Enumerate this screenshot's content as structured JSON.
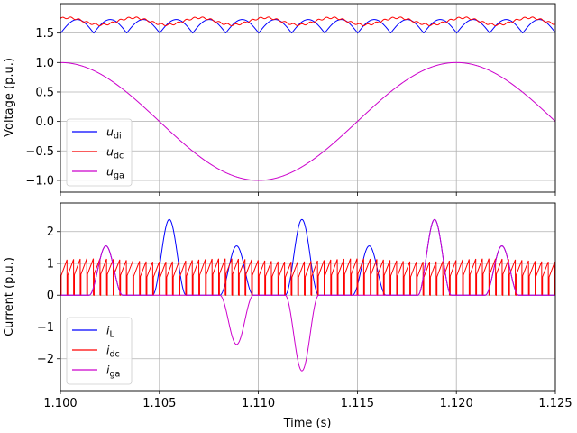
{
  "chart_data": [
    {
      "type": "line",
      "ylabel": "Voltage (p.u.)",
      "xlim": [
        1.1,
        1.125
      ],
      "ylim": [
        -1.2,
        2.0
      ],
      "yticks": [
        "1.5",
        "1.0",
        "0.5",
        "0.0",
        "−0.5",
        "−1.0"
      ],
      "ytick_values": [
        1.5,
        1.0,
        0.5,
        0.0,
        -0.5,
        -1.0
      ],
      "grid": true,
      "legend": "lower-left",
      "series": [
        {
          "name_base": "u",
          "name_sub": "di",
          "color": "#0000ff",
          "kind": "rectified_ripple",
          "values_desc": "ripple between about 1.5 and 1.73, period about 0.00167 s"
        },
        {
          "name_base": "u",
          "name_sub": "dc",
          "color": "#ff0000",
          "kind": "dc_ripple",
          "values_desc": "about 1.62 to 1.78, period about 0.0033 s"
        },
        {
          "name_base": "u",
          "name_sub": "ga",
          "color": "#cc00cc",
          "kind": "cosine",
          "values_desc": "cosine, 50 Hz, peak 1.0 at t=1.100 and 1.120, minimum -1.0 at t=1.110"
        }
      ]
    },
    {
      "type": "line",
      "xlabel": "Time (s)",
      "ylabel": "Current (p.u.)",
      "xlim": [
        1.1,
        1.125
      ],
      "ylim": [
        -3.0,
        2.9
      ],
      "xticks": [
        "1.100",
        "1.105",
        "1.110",
        "1.115",
        "1.120",
        "1.125"
      ],
      "xtick_values": [
        1.1,
        1.105,
        1.11,
        1.115,
        1.12,
        1.125
      ],
      "yticks": [
        "2",
        "1",
        "0",
        "−1",
        "−2"
      ],
      "ytick_values": [
        2,
        1,
        0,
        -1,
        -2
      ],
      "grid": true,
      "legend": "lower-left",
      "series": [
        {
          "name_base": "i",
          "name_sub": "L",
          "color": "#0000ff",
          "kind": "pulses",
          "peaks": [
            [
              1.1023,
              1.55
            ],
            [
              1.1055,
              2.38
            ],
            [
              1.1089,
              1.55
            ],
            [
              1.1122,
              2.38
            ],
            [
              1.1156,
              1.55
            ],
            [
              1.1189,
              2.38
            ],
            [
              1.1223,
              1.55
            ]
          ]
        },
        {
          "name_base": "i",
          "name_sub": "dc",
          "color": "#ff0000",
          "kind": "pwm_sawtooth",
          "values_desc": "switching between 0 and about 1.1"
        },
        {
          "name_base": "i",
          "name_sub": "ga",
          "color": "#cc00cc",
          "kind": "pulses",
          "peaks": [
            [
              1.1023,
              1.55
            ],
            [
              1.1089,
              -1.55
            ],
            [
              1.1122,
              -2.38
            ],
            [
              1.1189,
              2.38
            ],
            [
              1.1223,
              1.55
            ]
          ]
        }
      ]
    }
  ]
}
